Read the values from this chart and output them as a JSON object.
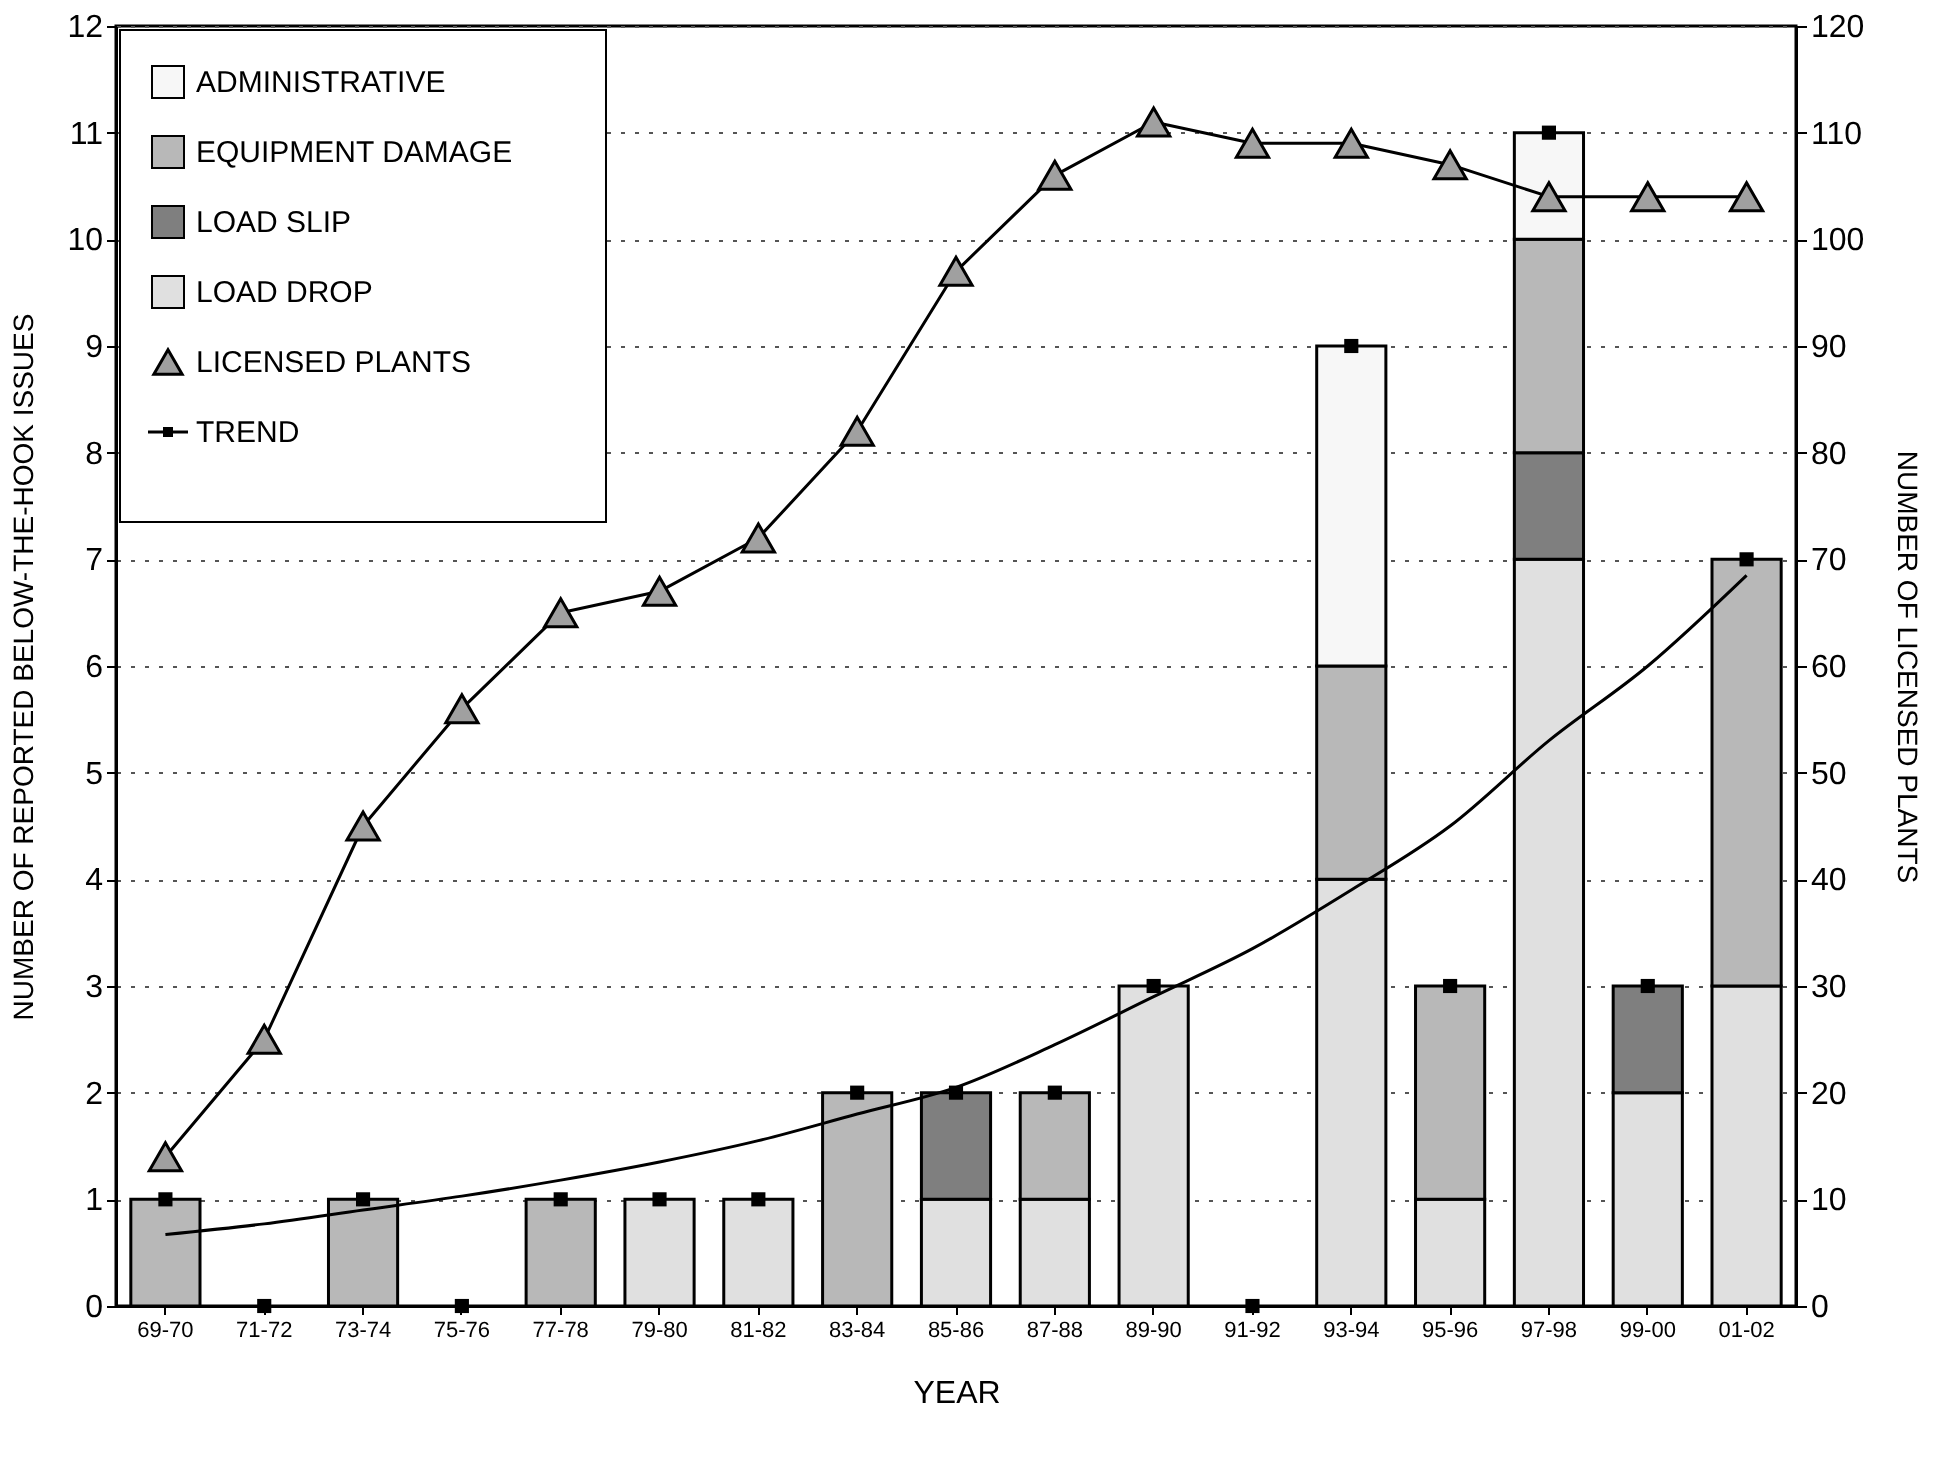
{
  "chart_data": {
    "type": "bar",
    "stacked": true,
    "xlabel": "YEAR",
    "ylabel": "NUMBER OF REPORTED BELOW-THE-HOOK ISSUES",
    "y2label": "NUMBER OF LICENSED PLANTS",
    "categories": [
      "69-70",
      "71-72",
      "73-74",
      "75-76",
      "77-78",
      "79-80",
      "81-82",
      "83-84",
      "85-86",
      "87-88",
      "89-90",
      "91-92",
      "93-94",
      "95-96",
      "97-98",
      "99-00",
      "01-02"
    ],
    "series": [
      {
        "name": "LOAD DROP",
        "color": "#e0e0e0",
        "values": [
          0,
          0,
          0,
          0,
          0,
          1,
          1,
          0,
          1,
          1,
          3,
          0,
          4,
          1,
          7,
          2,
          3
        ]
      },
      {
        "name": "LOAD SLIP",
        "color": "#7f7f7f",
        "values": [
          0,
          0,
          0,
          0,
          0,
          0,
          0,
          0,
          1,
          0,
          0,
          0,
          0,
          0,
          1,
          1,
          0
        ]
      },
      {
        "name": "EQUIPMENT DAMAGE",
        "color": "#b8b8b8",
        "values": [
          1,
          0,
          1,
          0,
          1,
          0,
          0,
          2,
          0,
          1,
          0,
          0,
          2,
          2,
          2,
          0,
          4
        ]
      },
      {
        "name": "ADMINISTRATIVE",
        "color": "#f7f7f7",
        "values": [
          0,
          0,
          0,
          0,
          0,
          0,
          0,
          0,
          0,
          0,
          0,
          0,
          3,
          0,
          1,
          0,
          0
        ]
      },
      {
        "name": "LICENSED PLANTS",
        "type": "line",
        "axis": "y2",
        "marker": "triangle",
        "color": "#a0a0a0",
        "values": [
          14,
          25,
          45,
          56,
          65,
          67,
          72,
          82,
          97,
          106,
          111,
          109,
          109,
          107,
          104,
          104,
          104
        ]
      },
      {
        "name": "TREND",
        "type": "line",
        "marker": "none",
        "color": "#000000",
        "values": [
          0.67,
          0.77,
          0.9,
          1.03,
          1.18,
          1.35,
          1.55,
          1.8,
          2.05,
          2.45,
          2.9,
          3.35,
          3.9,
          4.5,
          5.3,
          6.0,
          6.85
        ]
      },
      {
        "type": "scatter",
        "marker": "square",
        "color": "#000000",
        "values": [
          1,
          0,
          1,
          0,
          1,
          1,
          1,
          2,
          2,
          2,
          3,
          0,
          9,
          3,
          11,
          3,
          7
        ]
      }
    ],
    "ylim": [
      0,
      12
    ],
    "yticks": [
      0,
      1,
      2,
      3,
      4,
      5,
      6,
      7,
      8,
      9,
      10,
      11,
      12
    ],
    "y2lim": [
      0,
      120
    ],
    "y2ticks": [
      0,
      10,
      20,
      30,
      40,
      50,
      60,
      70,
      80,
      90,
      100,
      110,
      120
    ],
    "grid": "y",
    "legend": "top left"
  }
}
